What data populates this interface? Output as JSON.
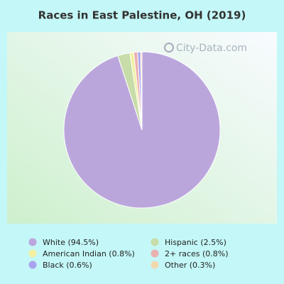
{
  "chart_data": {
    "type": "pie",
    "title": "Races in East Palestine, OH (2019)",
    "watermark": "City-Data.com",
    "categories": [
      "White (94.5%)",
      "Hispanic (2.5%)",
      "American Indian (0.8%)",
      "2+ races (0.8%)",
      "Black (0.6%)",
      "Other (0.3%)"
    ],
    "values": [
      94.5,
      2.5,
      0.8,
      0.8,
      0.6,
      0.3
    ],
    "colors": [
      "#bba6dc",
      "#c7dca8",
      "#f1f0a0",
      "#e9b0b0",
      "#a9a2ef",
      "#f2d8b0"
    ]
  }
}
